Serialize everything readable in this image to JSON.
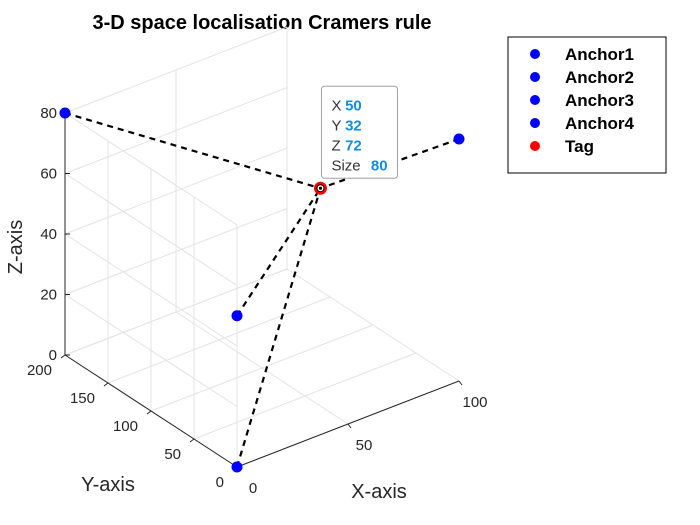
{
  "chart_data": {
    "type": "scatter3d",
    "title": "3-D space localisation Cramers rule",
    "xlabel": "X-axis",
    "ylabel": "Y-axis",
    "zlabel": "Z-axis",
    "xlim": [
      0,
      100
    ],
    "ylim": [
      0,
      200
    ],
    "zlim": [
      0,
      80
    ],
    "xticks": [
      "0",
      "50",
      "100"
    ],
    "yticks": [
      "0",
      "50",
      "100",
      "150",
      "200"
    ],
    "zticks": [
      "0",
      "20",
      "40",
      "60",
      "80"
    ],
    "grid": true,
    "legend_position": "outside-top-right",
    "series": [
      {
        "name": "Anchor1",
        "color": "#0000ff",
        "x": 0,
        "y": 0,
        "z": 0
      },
      {
        "name": "Anchor2",
        "color": "#0000ff",
        "x": 0,
        "y": 200,
        "z": 80
      },
      {
        "name": "Anchor3",
        "color": "#0000ff",
        "x": 100,
        "y": 0,
        "z": 80
      },
      {
        "name": "Anchor4",
        "color": "#0000ff",
        "x": 0,
        "y": 0,
        "z": 50
      },
      {
        "name": "Tag",
        "color": "#ff0000",
        "x": 50,
        "y": 32,
        "z": 72
      }
    ],
    "datatip": {
      "target": "Tag",
      "rows": [
        {
          "key": "X",
          "value": "50"
        },
        {
          "key": "Y",
          "value": "32"
        },
        {
          "key": "Z",
          "value": "72"
        },
        {
          "key": "Size",
          "value": "80"
        }
      ]
    }
  }
}
